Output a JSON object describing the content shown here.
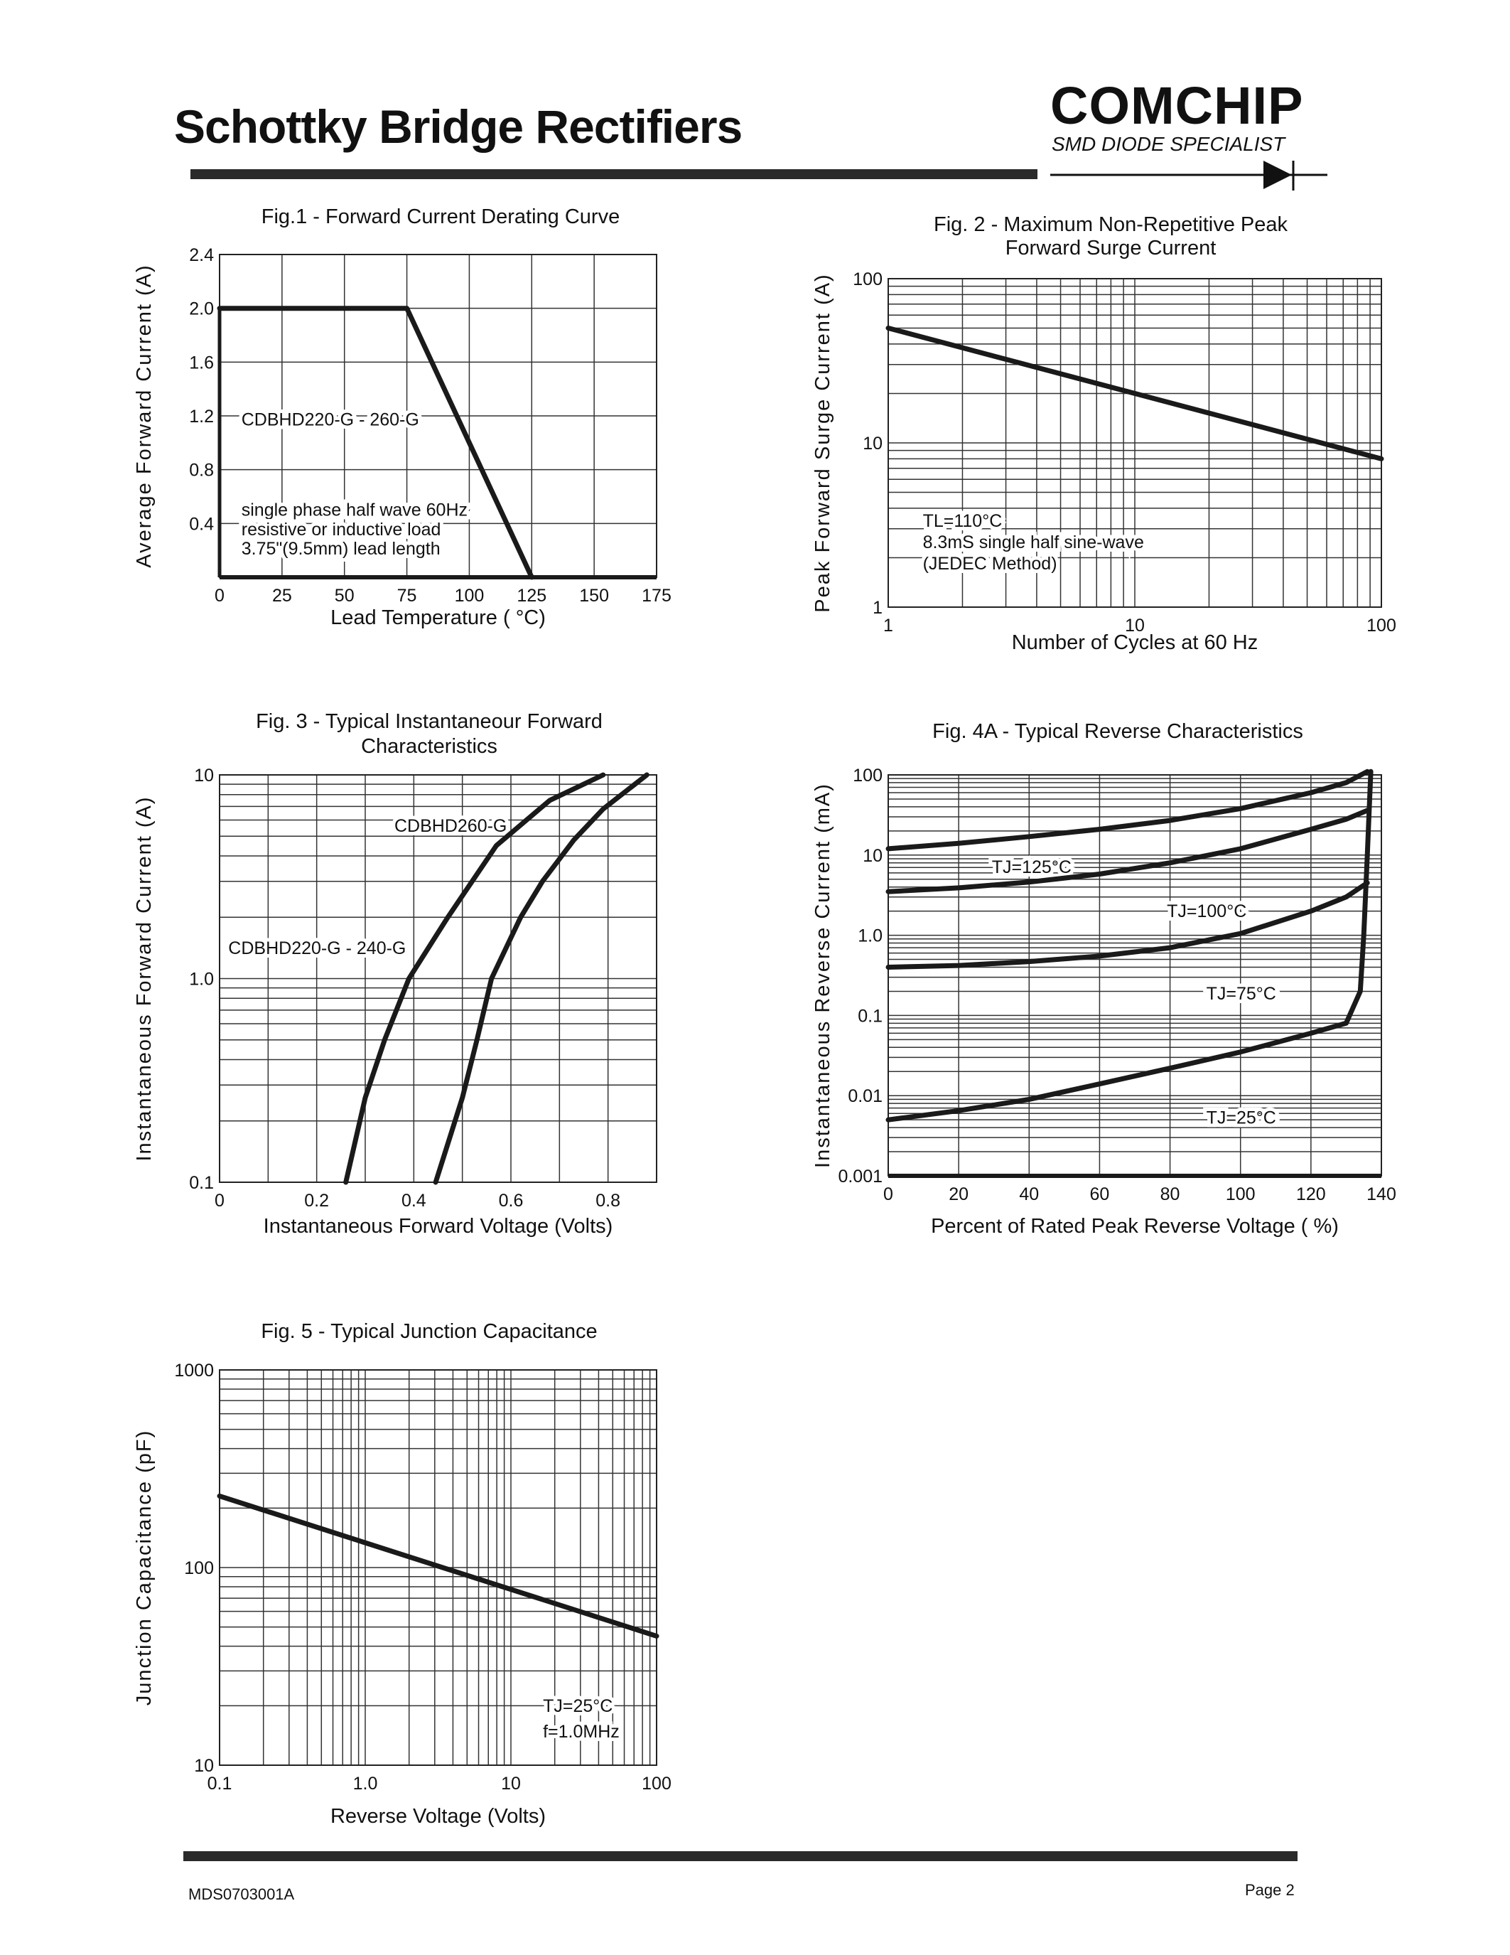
{
  "header": {
    "title": "Schottky Bridge Rectifiers",
    "logo_name": "COMCHIP",
    "logo_tagline": "SMD DIODE SPECIALIST"
  },
  "footer": {
    "doc_code": "MDS0703001A",
    "page": "Page 2"
  },
  "chart_data": [
    {
      "type": "line",
      "title": [
        "Fig.1 -  Forward Current Derating Curve"
      ],
      "xlabel": "Lead Temperature ( °C)",
      "ylabel": "Average Forward Current (A)",
      "xscale": "linear",
      "yscale": "linear",
      "xlim": [
        0,
        175
      ],
      "ylim": [
        0,
        2.4
      ],
      "xticks": [
        0,
        25,
        50,
        75,
        100,
        125,
        150,
        175
      ],
      "xtick_labels": [
        "0",
        "25",
        "50",
        "75",
        "100",
        "125",
        "150",
        "175"
      ],
      "yticks": [
        0.4,
        0.8,
        1.2,
        1.6,
        2.0,
        2.4
      ],
      "ytick_labels": [
        "0.4",
        "0.8",
        "1.2",
        "1.6",
        "2.0",
        "2.4"
      ],
      "grid": true,
      "series": [
        {
          "name": "CDBHD220-G - 260-G",
          "x": [
            0,
            75,
            125
          ],
          "y": [
            2.0,
            2.0,
            0
          ]
        }
      ],
      "annotations": [
        "CDBHD220-G - 260-G",
        "single phase half wave 60Hz",
        "resistive or inductive load",
        "3.75\"(9.5mm) lead length"
      ]
    },
    {
      "type": "line",
      "title": [
        "Fig. 2 - Maximum Non-Repetitive Peak",
        "Forward Surge Current"
      ],
      "xlabel": "Number of Cycles at 60 Hz",
      "ylabel": "Peak Forward Surge Current (A)",
      "xscale": "log",
      "yscale": "log",
      "xlim": [
        1,
        100
      ],
      "ylim": [
        1,
        100
      ],
      "xticks": [
        1,
        10,
        100
      ],
      "xtick_labels": [
        "1",
        "10",
        "100"
      ],
      "yticks": [
        1,
        10,
        100
      ],
      "ytick_labels": [
        "1",
        "10",
        "100"
      ],
      "grid": true,
      "series": [
        {
          "x": [
            1,
            100
          ],
          "y": [
            50,
            8
          ]
        }
      ],
      "annotations": [
        "TL=110°C",
        "8.3mS single half sine-wave",
        "(JEDEC Method)"
      ]
    },
    {
      "type": "line",
      "title": [
        "Fig. 3 - Typical Instantaneour Forward",
        "Characteristics"
      ],
      "xlabel": "Instantaneous Forward Voltage (Volts)",
      "ylabel": "Instantaneous Forward Current (A)",
      "xscale": "linear",
      "yscale": "log",
      "xlim": [
        0,
        0.9
      ],
      "ylim": [
        0.1,
        10
      ],
      "xticks": [
        0,
        0.2,
        0.4,
        0.6,
        0.8
      ],
      "xtick_labels": [
        "0",
        "0.2",
        "0.4",
        "0.6",
        "0.8"
      ],
      "yticks": [
        0.1,
        1,
        10
      ],
      "ytick_labels": [
        "0.1",
        "1.0",
        "10"
      ],
      "grid": true,
      "series": [
        {
          "name": "CDBHD220-G - 240-G",
          "x": [
            0.26,
            0.3,
            0.34,
            0.39,
            0.47,
            0.57,
            0.68,
            0.79
          ],
          "y": [
            0.1,
            0.26,
            0.5,
            1.0,
            2.0,
            4.5,
            7.5,
            10
          ]
        },
        {
          "name": "CDBHD260-G",
          "x": [
            0.445,
            0.5,
            0.53,
            0.56,
            0.62,
            0.665,
            0.73,
            0.79,
            0.88
          ],
          "y": [
            0.1,
            0.26,
            0.5,
            1.0,
            2.0,
            3.0,
            4.8,
            6.8,
            10
          ]
        }
      ],
      "annotations": [
        "CDBHD260-G",
        "CDBHD220-G - 240-G"
      ]
    },
    {
      "type": "line",
      "title": [
        "Fig. 4A  - Typical Reverse Characteristics"
      ],
      "xlabel": "Percent of Rated Peak Reverse Voltage ( %)",
      "ylabel": "Instantaneous Reverse Current (mA)",
      "xscale": "linear",
      "yscale": "log",
      "xlim": [
        0,
        140
      ],
      "ylim": [
        0.001,
        100
      ],
      "xticks": [
        0,
        20,
        40,
        60,
        80,
        100,
        120,
        140
      ],
      "xtick_labels": [
        "0",
        "20",
        "40",
        "60",
        "80",
        "100",
        "120",
        "140"
      ],
      "yticks": [
        0.001,
        0.01,
        0.1,
        1,
        10,
        100
      ],
      "ytick_labels": [
        "0.001",
        "0.01",
        "0.1",
        "1.0",
        "10",
        "100"
      ],
      "grid": true,
      "series": [
        {
          "name": "TJ=125°C",
          "x": [
            0,
            20,
            40,
            60,
            80,
            100,
            120,
            130,
            136
          ],
          "y": [
            12,
            14,
            17,
            21,
            27,
            38,
            60,
            80,
            110
          ]
        },
        {
          "name": "TJ=100°C",
          "x": [
            0,
            20,
            40,
            60,
            80,
            100,
            120,
            130,
            136
          ],
          "y": [
            3.5,
            3.9,
            4.6,
            5.8,
            8,
            12,
            21,
            28,
            36
          ]
        },
        {
          "name": "TJ=75°C",
          "x": [
            0,
            20,
            40,
            60,
            80,
            100,
            120,
            130,
            136
          ],
          "y": [
            0.4,
            0.42,
            0.47,
            0.55,
            0.7,
            1.05,
            2.0,
            3.0,
            4.5
          ]
        },
        {
          "name": "TJ=25°C",
          "x": [
            0,
            20,
            40,
            60,
            80,
            100,
            120,
            130,
            134,
            135,
            136,
            137
          ],
          "y": [
            0.005,
            0.0065,
            0.009,
            0.014,
            0.022,
            0.035,
            0.06,
            0.08,
            0.2,
            1,
            10,
            110
          ]
        }
      ],
      "annotations": [
        "TJ=125°C",
        "TJ=100°C",
        "TJ=75°C",
        "TJ=25°C"
      ]
    },
    {
      "type": "line",
      "title": [
        "Fig. 5 - Typical Junction Capacitance"
      ],
      "xlabel": "Reverse Voltage (Volts)",
      "ylabel": "Junction Capacitance (pF)",
      "xscale": "log",
      "yscale": "log",
      "xlim": [
        0.1,
        100
      ],
      "ylim": [
        10,
        1000
      ],
      "xticks": [
        0.1,
        1,
        10,
        100
      ],
      "xtick_labels": [
        "0.1",
        "1.0",
        "10",
        "100"
      ],
      "yticks": [
        10,
        100,
        1000
      ],
      "ytick_labels": [
        "10",
        "100",
        "1000"
      ],
      "grid": true,
      "series": [
        {
          "x": [
            0.1,
            100
          ],
          "y": [
            230,
            45
          ]
        }
      ],
      "annotations": [
        "TJ=25°C",
        "f=1.0MHz"
      ]
    }
  ]
}
